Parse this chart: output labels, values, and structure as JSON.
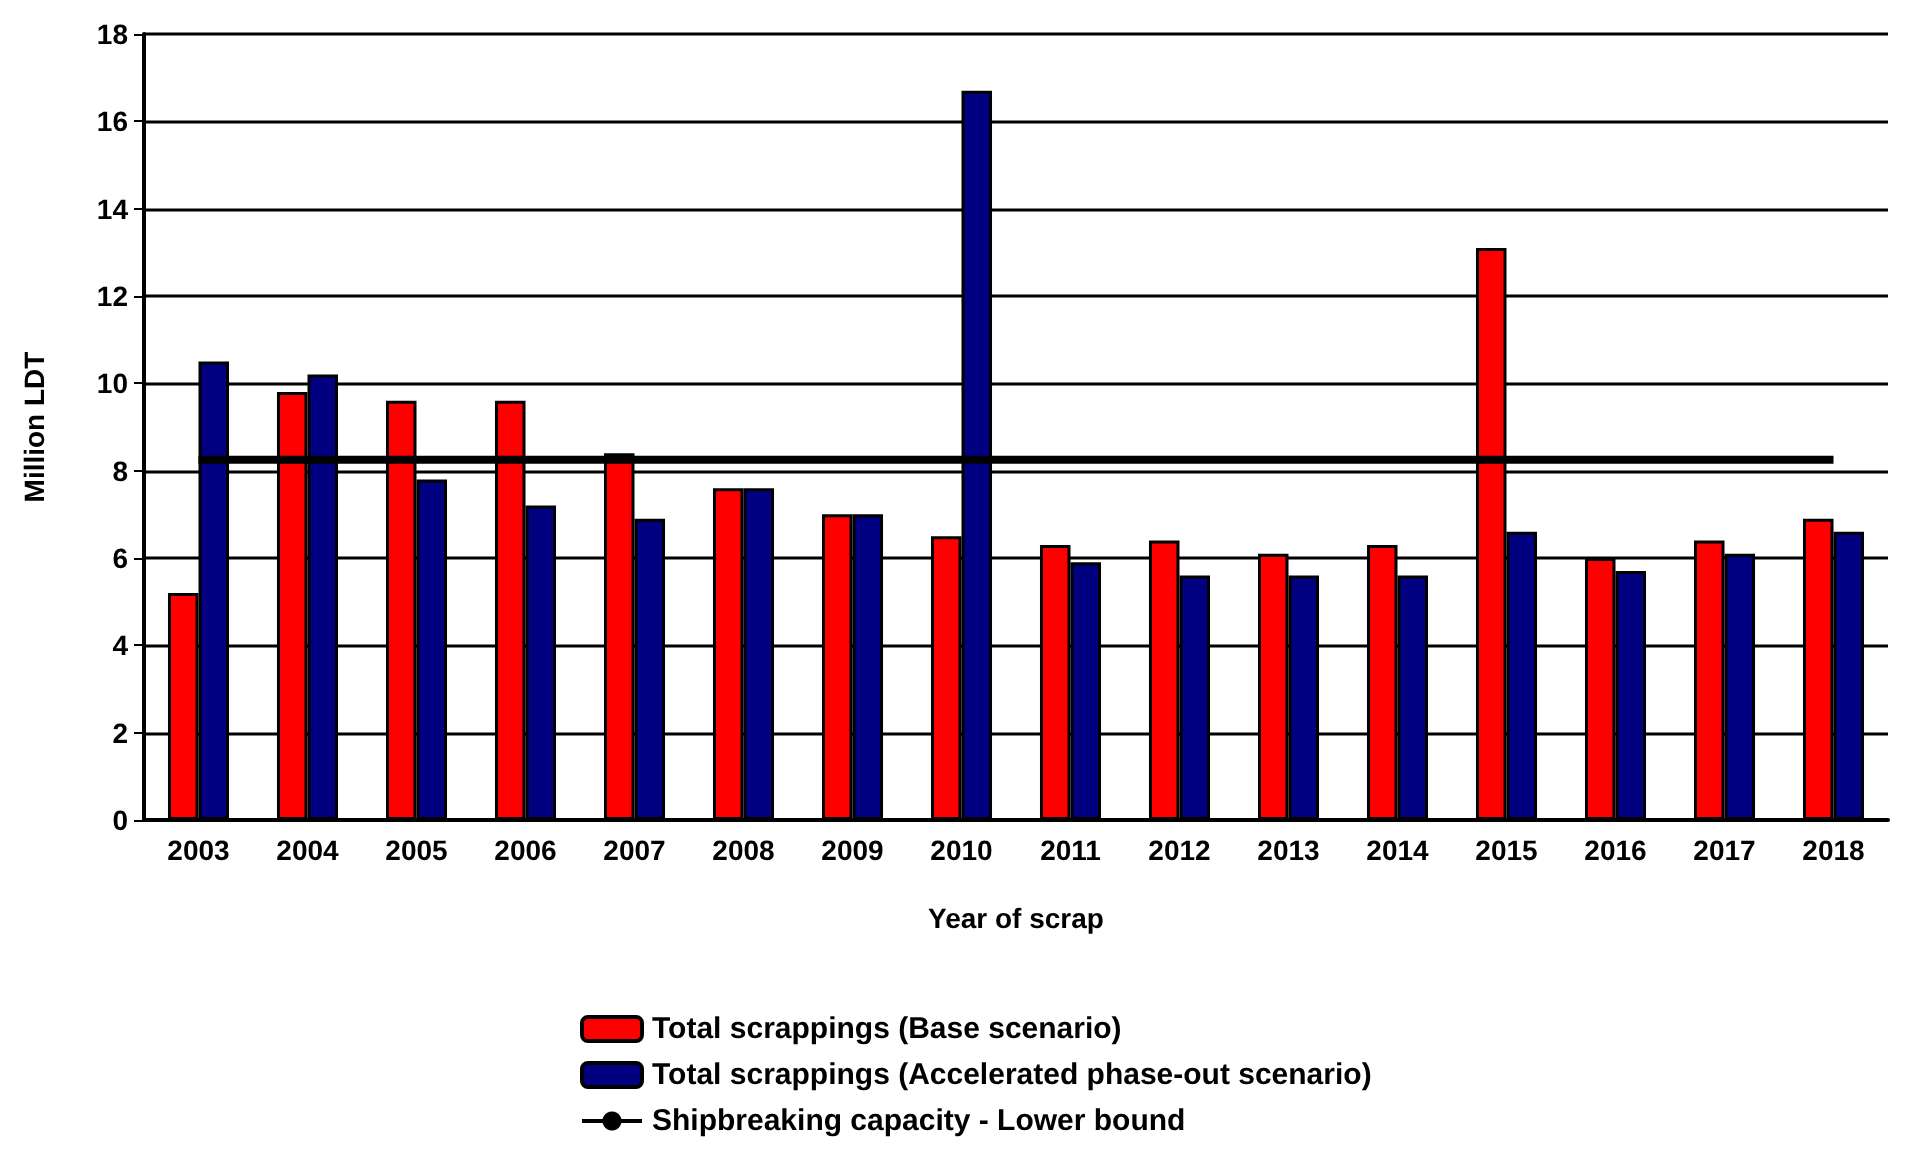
{
  "chart_data": {
    "type": "bar",
    "xlabel": "Year of scrap",
    "ylabel": "Million LDT",
    "categories": [
      "2003",
      "2004",
      "2005",
      "2006",
      "2007",
      "2008",
      "2009",
      "2010",
      "2011",
      "2012",
      "2013",
      "2014",
      "2015",
      "2016",
      "2017",
      "2018"
    ],
    "series": [
      {
        "name": "Total scrappings (Base scenario)",
        "color": "#ff0000",
        "values": [
          5.2,
          9.8,
          9.6,
          9.6,
          8.4,
          7.6,
          7.0,
          6.5,
          6.3,
          6.4,
          6.1,
          6.3,
          13.1,
          6.0,
          6.4,
          6.9
        ]
      },
      {
        "name": "Total scrappings (Accelerated phase-out scenario)",
        "color": "#000080",
        "values": [
          10.5,
          10.2,
          7.8,
          7.2,
          6.9,
          7.6,
          7.0,
          16.7,
          5.9,
          5.6,
          5.6,
          5.6,
          6.6,
          5.7,
          6.1,
          6.6
        ]
      },
      {
        "name": "Shipbreaking capacity - Lower bound",
        "type": "line",
        "color": "#000000",
        "values": [
          8.25,
          8.25,
          8.25,
          8.25,
          8.25,
          8.25,
          8.25,
          8.25,
          8.25,
          8.25,
          8.25,
          8.25,
          8.25,
          8.25,
          8.25,
          8.25
        ]
      }
    ],
    "ylim": [
      0,
      18
    ],
    "yticks": [
      0,
      2,
      4,
      6,
      8,
      10,
      12,
      14,
      16,
      18
    ],
    "grid": "y",
    "legend": "bottom",
    "marker": "none",
    "line_style": "solid"
  }
}
